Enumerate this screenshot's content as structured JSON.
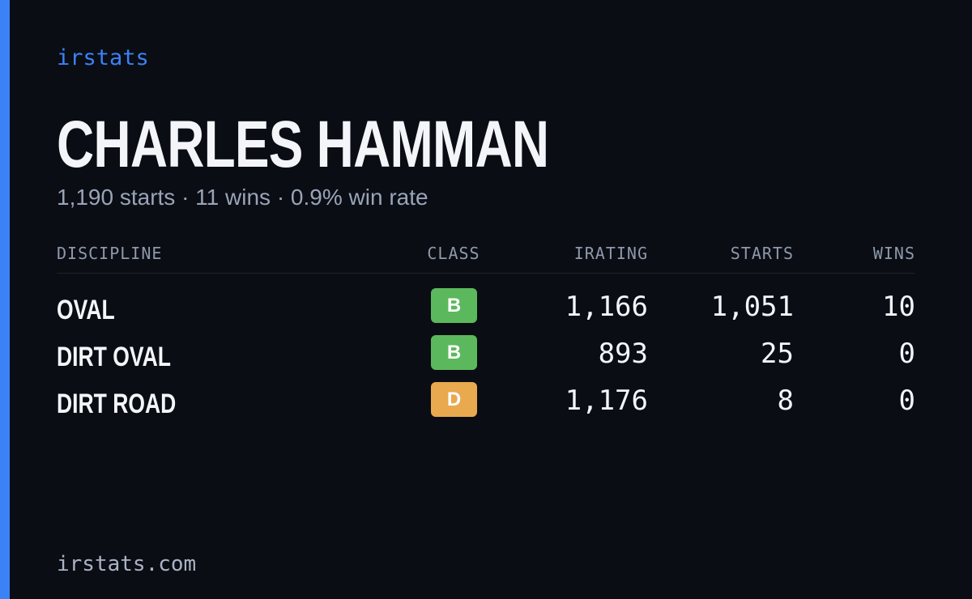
{
  "brand": "irstats",
  "driver": {
    "name": "CHARLES HAMMAN",
    "summary": "1,190 starts · 11 wins · 0.9% win rate"
  },
  "table": {
    "columns": [
      "DISCIPLINE",
      "CLASS",
      "IRATING",
      "STARTS",
      "WINS"
    ],
    "rows": [
      {
        "discipline": "OVAL",
        "class": "B",
        "class_color": "#5cb85c",
        "irating": "1,166",
        "starts": "1,051",
        "wins": "10"
      },
      {
        "discipline": "DIRT OVAL",
        "class": "B",
        "class_color": "#5cb85c",
        "irating": "893",
        "starts": "25",
        "wins": "0"
      },
      {
        "discipline": "DIRT ROAD",
        "class": "D",
        "class_color": "#e8a94f",
        "irating": "1,176",
        "starts": "8",
        "wins": "0"
      }
    ]
  },
  "footer": "irstats.com"
}
